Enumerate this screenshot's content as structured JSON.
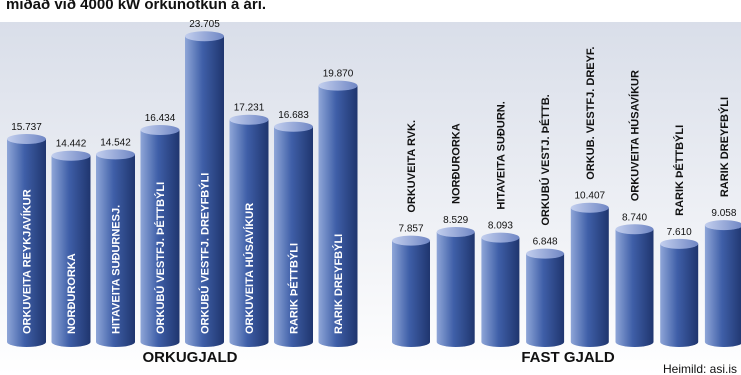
{
  "header_text": "miðað við 4000 kW orkunotkun á ári.",
  "source": "Heimild: asi.is",
  "colors": {
    "bar_light": "#8fa6d8",
    "bar_mid": "#3f5fa8",
    "bar_dark": "#1f356e",
    "top_light": "#c3cfee",
    "top_dark": "#6f86c4",
    "panel_top": "#d9dee9",
    "panel_bottom": "#ffffff",
    "text": "#111111",
    "bar_text": "#ffffff"
  },
  "chart_data": [
    {
      "type": "bar",
      "title": "ORKUGJALD",
      "categories": [
        "ORKUVEITA REYKJAVÍKUR",
        "NORÐURORKA",
        "HITAVEITA SUÐURNESJ.",
        "ORKUBÚ VESTFJ. ÞÉTTBÝLI",
        "ORKUBÚ VESTFJ. DREYFBÝLI",
        "ORKUVEITA HÚSAVÍKUR",
        "RARIK ÞÉTTBÝLI",
        "RARIK DREYFBÝLI"
      ],
      "values": [
        15.737,
        14.442,
        14.542,
        16.434,
        23.705,
        17.231,
        16.683,
        19.87
      ],
      "value_labels": [
        "15.737",
        "14.442",
        "14.542",
        "16.434",
        "23.705",
        "17.231",
        "16.683",
        "19.870"
      ],
      "label_position": "inside-bar",
      "ylim": [
        0,
        24.5
      ]
    },
    {
      "type": "bar",
      "title": "FAST GJALD",
      "categories": [
        "ORKUVEITA RVK.",
        "NORÐURORKA",
        "HITAVEITA SUÐURN.",
        "ORKUBÚ VESTJ. ÞÉTTB.",
        "ORKUB. VESTFJ. DREYF.",
        "ORKUVEITA HÚSAVÍKUR",
        "RARIK ÞÉTTBÝLI",
        "RARIK DREYFBÝLI"
      ],
      "values": [
        7.857,
        8.529,
        8.093,
        6.848,
        10.407,
        8.74,
        7.61,
        9.058
      ],
      "value_labels": [
        "7.857",
        "8.529",
        "8.093",
        "6.848",
        "10.407",
        "8.740",
        "7.610",
        "9.058"
      ],
      "label_position": "above-bar",
      "ylim": [
        0,
        24.5
      ]
    }
  ]
}
